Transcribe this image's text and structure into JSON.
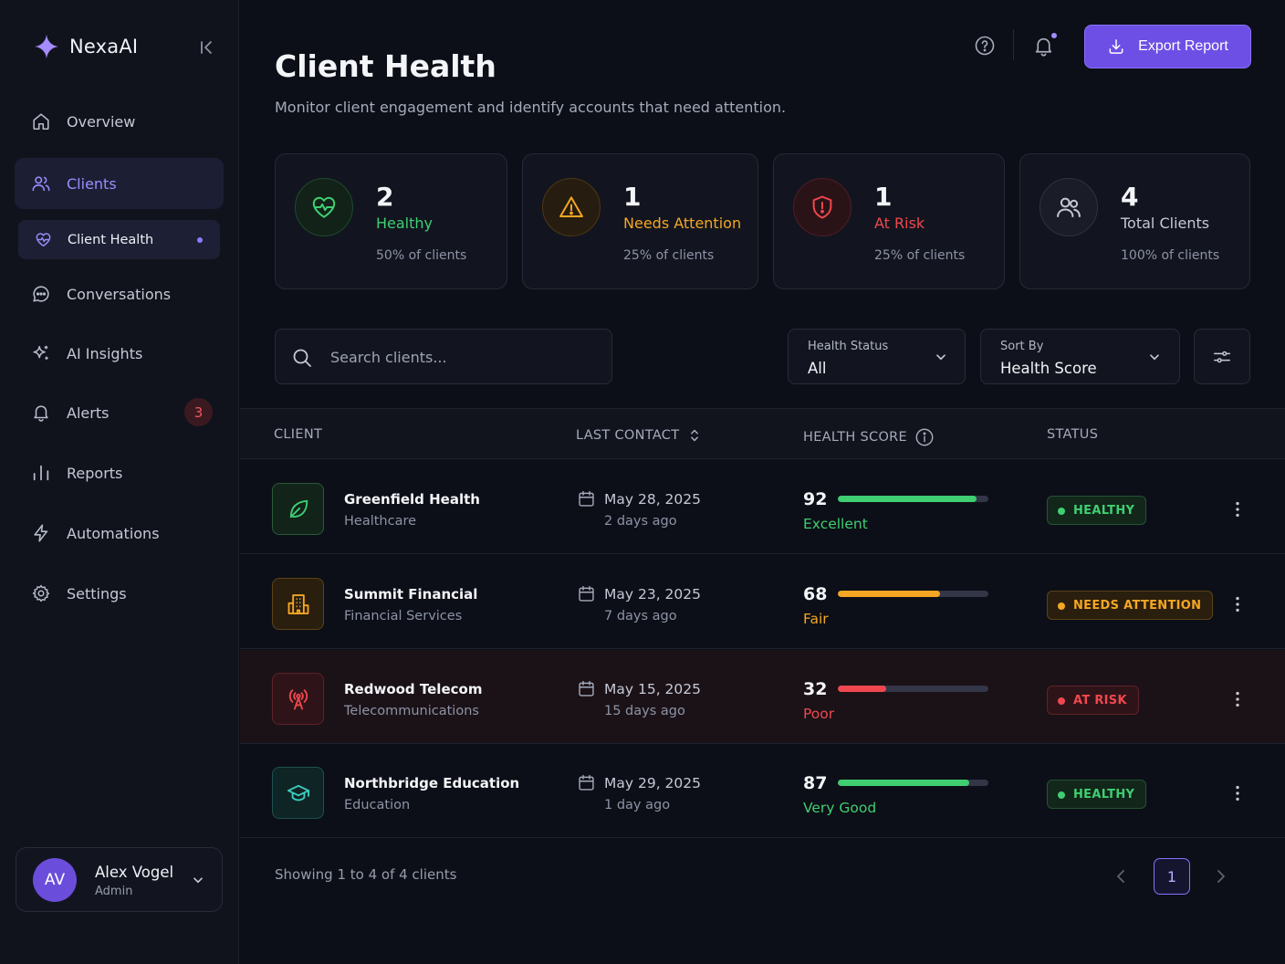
{
  "app": {
    "name": "NexaAI"
  },
  "sidebar": {
    "items": [
      {
        "label": "Overview",
        "icon": "home-icon"
      },
      {
        "label": "Clients",
        "icon": "users-icon"
      },
      {
        "label": "Client Health",
        "icon": "heart-pulse-icon"
      },
      {
        "label": "Conversations",
        "icon": "chat-icon"
      },
      {
        "label": "AI Insights",
        "icon": "sparkles-icon"
      },
      {
        "label": "Alerts",
        "icon": "bell-icon",
        "badge": "3"
      },
      {
        "label": "Reports",
        "icon": "bar-chart-icon"
      },
      {
        "label": "Automations",
        "icon": "lightning-icon"
      },
      {
        "label": "Settings",
        "icon": "gear-icon"
      }
    ],
    "active": "Clients",
    "active_sub": "Client Health"
  },
  "user": {
    "initials": "AV",
    "name": "Alex Vogel",
    "role": "Admin"
  },
  "header": {
    "title": "Client Health",
    "subtitle": "Monitor client engagement and identify accounts that need attention.",
    "export_label": "Export Report"
  },
  "stats": [
    {
      "value": "2",
      "label": "Healthy",
      "sub": "50% of clients",
      "color": "#3fce72"
    },
    {
      "value": "1",
      "label": "Needs Attention",
      "sub": "25% of clients",
      "color": "#f5a623"
    },
    {
      "value": "1",
      "label": "At Risk",
      "sub": "25% of clients",
      "color": "#f0474f"
    },
    {
      "value": "4",
      "label": "Total Clients",
      "sub": "100% of clients",
      "color": "#c5c9d6"
    }
  ],
  "filters": {
    "search_placeholder": "Search clients...",
    "health_status": {
      "caption": "Health Status",
      "value": "All"
    },
    "sort_by": {
      "caption": "Sort By",
      "value": "Health Score"
    }
  },
  "table": {
    "columns": [
      "CLIENT",
      "LAST CONTACT",
      "HEALTH SCORE",
      "STATUS"
    ],
    "rows": [
      {
        "name": "Greenfield Health",
        "industry": "Healthcare",
        "icon": "leaf-icon",
        "date": "May 28, 2025",
        "ago": "2 days ago",
        "score": "92",
        "score_label": "Excellent",
        "status": "HEALTHY",
        "color": "#3fce72"
      },
      {
        "name": "Summit Financial",
        "industry": "Financial Services",
        "icon": "building-icon",
        "date": "May 23, 2025",
        "ago": "7 days ago",
        "score": "68",
        "score_label": "Fair",
        "status": "NEEDS ATTENTION",
        "color": "#f5a623"
      },
      {
        "name": "Redwood Telecom",
        "industry": "Telecommunications",
        "icon": "antenna-icon",
        "date": "May 15, 2025",
        "ago": "15 days ago",
        "score": "32",
        "score_label": "Poor",
        "status": "AT RISK",
        "color": "#f0474f"
      },
      {
        "name": "Northbridge Education",
        "industry": "Education",
        "icon": "graduation-cap-icon",
        "date": "May 29, 2025",
        "ago": "1 day ago",
        "score": "87",
        "score_label": "Very Good",
        "status": "HEALTHY",
        "color": "#3fce72"
      }
    ]
  },
  "footer": {
    "showing": "Showing 1 to 4 of 4 clients",
    "current_page": "1"
  }
}
